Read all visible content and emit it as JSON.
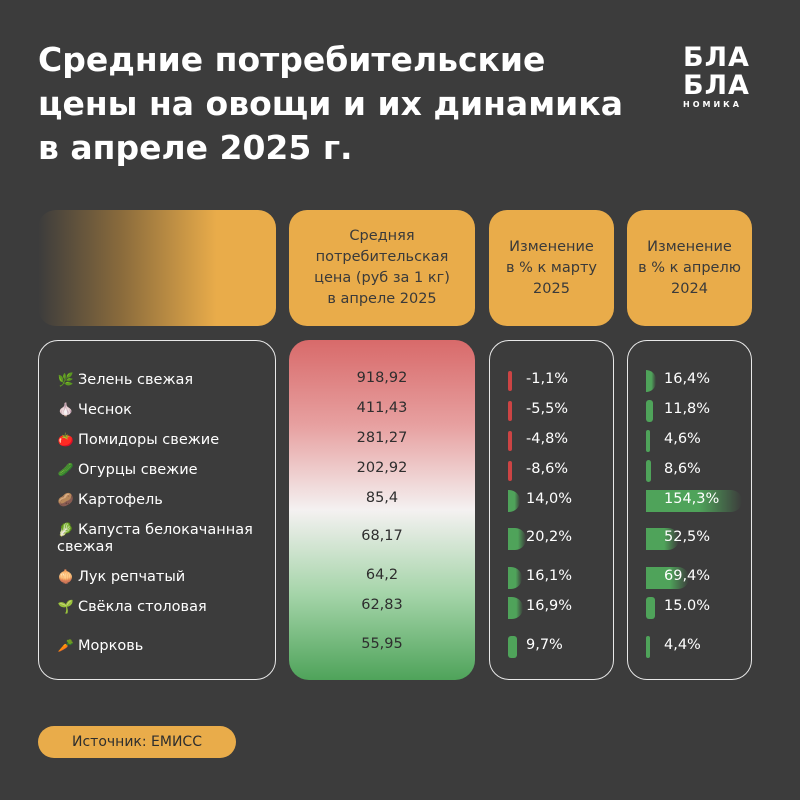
{
  "title_lines": [
    "Средние потребительские",
    "цены на овощи и их динамика",
    "в апреле 2025 г."
  ],
  "logo": {
    "line1": "БЛА",
    "line2": "БЛА",
    "line3": "НОМИКА"
  },
  "columns": {
    "price": "Средняя\nпотребительская\nцена (руб за 1 кг)\nв апреле 2025",
    "mar": "Изменение\nв % к марту\n2025",
    "apr": "Изменение\nв % к апрелю\n2024"
  },
  "source": "Источник: ЕМИСС",
  "colors": {
    "background": "#3c3c3c",
    "accent": "#e9ac4a",
    "negative": "#cc4444",
    "positive": "#4fa35a"
  },
  "chart_data": {
    "type": "table",
    "rows": [
      {
        "name": "Зелень свежая",
        "icon": "herbs-icon",
        "glyph": "🌿",
        "price": "918,92",
        "price_value": 918.92,
        "mar": "-1,1%",
        "mar_value": -1.1,
        "apr": "16,4%",
        "apr_value": 16.4
      },
      {
        "name": "Чеснок",
        "icon": "garlic-icon",
        "glyph": "🧄",
        "price": "411,43",
        "price_value": 411.43,
        "mar": "-5,5%",
        "mar_value": -5.5,
        "apr": "11,8%",
        "apr_value": 11.8
      },
      {
        "name": "Помидоры свежие",
        "icon": "tomato-icon",
        "glyph": "🍅",
        "price": "281,27",
        "price_value": 281.27,
        "mar": "-4,8%",
        "mar_value": -4.8,
        "apr": "4,6%",
        "apr_value": 4.6
      },
      {
        "name": "Огурцы свежие",
        "icon": "cucumber-icon",
        "glyph": "🥒",
        "price": "202,92",
        "price_value": 202.92,
        "mar": "-8,6%",
        "mar_value": -8.6,
        "apr": "8,6%",
        "apr_value": 8.6
      },
      {
        "name": "Картофель",
        "icon": "potato-icon",
        "glyph": "🥔",
        "price": "85,4",
        "price_value": 85.4,
        "mar": "14,0%",
        "mar_value": 14.0,
        "apr": "154,3%",
        "apr_value": 154.3
      },
      {
        "name": "Капуста белокачанная\nсвежая",
        "icon": "cabbage-icon",
        "glyph": "🥬",
        "price": "68,17",
        "price_value": 68.17,
        "mar": "20,2%",
        "mar_value": 20.2,
        "apr": "52,5%",
        "apr_value": 52.5
      },
      {
        "name": "Лук репчатый",
        "icon": "onion-icon",
        "glyph": "🧅",
        "price": "64,2",
        "price_value": 64.2,
        "mar": "16,1%",
        "mar_value": 16.1,
        "apr": "69,4%",
        "apr_value": 69.4
      },
      {
        "name": "Свёкла столовая",
        "icon": "beet-icon",
        "glyph": "🌱",
        "price": "62,83",
        "price_value": 62.83,
        "mar": "16,9%",
        "mar_value": 16.9,
        "apr": "15.0%",
        "apr_value": 15.0
      },
      {
        "name": "Морковь",
        "icon": "carrot-icon",
        "glyph": "🥕",
        "price": "55,95",
        "price_value": 55.95,
        "mar": "9,7%",
        "mar_value": 9.7,
        "apr": "4,4%",
        "apr_value": 4.4
      }
    ]
  }
}
